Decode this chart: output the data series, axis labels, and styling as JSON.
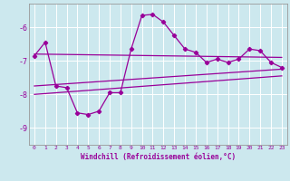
{
  "xlabel": "Windchill (Refroidissement éolien,°C)",
  "background_color": "#cce8ee",
  "grid_color": "#ffffff",
  "line_color": "#990099",
  "xlim": [
    -0.5,
    23.5
  ],
  "ylim": [
    -9.5,
    -5.3
  ],
  "yticks": [
    -9,
    -8,
    -7,
    -6
  ],
  "xticks": [
    0,
    1,
    2,
    3,
    4,
    5,
    6,
    7,
    8,
    9,
    10,
    11,
    12,
    13,
    14,
    15,
    16,
    17,
    18,
    19,
    20,
    21,
    22,
    23
  ],
  "curve_x": [
    0,
    1,
    2,
    3,
    4,
    5,
    6,
    7,
    8,
    9,
    10,
    11,
    12,
    13,
    14,
    15,
    16,
    17,
    18,
    19,
    20,
    21,
    22,
    23
  ],
  "curve_y": [
    -6.85,
    -6.45,
    -7.75,
    -7.8,
    -8.55,
    -8.6,
    -8.5,
    -7.95,
    -7.95,
    -6.65,
    -5.65,
    -5.62,
    -5.85,
    -6.25,
    -6.65,
    -6.75,
    -7.05,
    -6.95,
    -7.05,
    -6.95,
    -6.65,
    -6.7,
    -7.05,
    -7.2
  ],
  "line1_x": [
    0,
    23
  ],
  "line1_y": [
    -6.8,
    -6.9
  ],
  "line2_x": [
    0,
    23
  ],
  "line2_y": [
    -7.75,
    -7.25
  ],
  "line3_x": [
    0,
    23
  ],
  "line3_y": [
    -8.0,
    -7.45
  ],
  "spine_color": "#999999"
}
